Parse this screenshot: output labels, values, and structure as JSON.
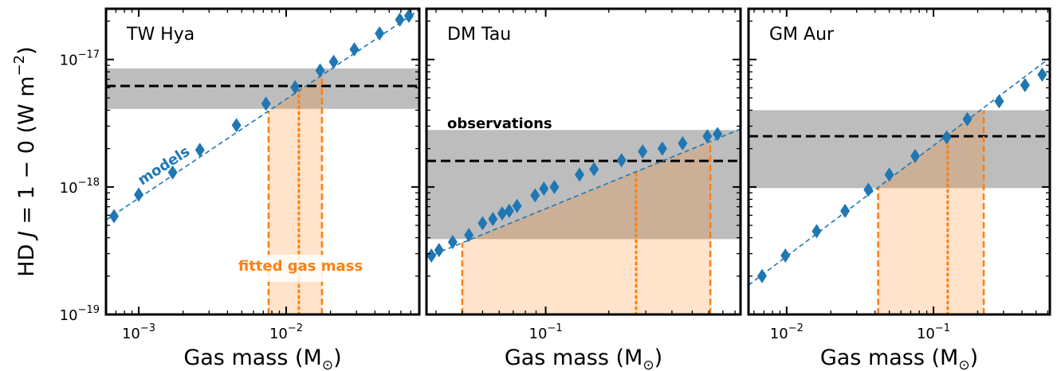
{
  "figure": {
    "ylabel_prefix": "HD",
    "ylabel_J": "J",
    "ylabel_eq": " = 1 − 0 (W m",
    "ylabel_exp": "−2",
    "ylabel_close": ")",
    "xlabel": "Gas mass (M",
    "xlabel_sub": "⊙",
    "xlabel_close": ")"
  },
  "y_ticks": [
    {
      "base": "10",
      "exp": "−17",
      "value": 1e-17
    },
    {
      "base": "10",
      "exp": "−18",
      "value": 1e-18
    },
    {
      "base": "10",
      "exp": "−19",
      "value": 1e-19
    }
  ],
  "colors": {
    "models": "#1f77b4",
    "fit": "#ff7f0e",
    "fit_fill": "#ffe2c6",
    "obs_band": "#bdbdbd",
    "obs_line": "#000000"
  },
  "chart_data": [
    {
      "type": "scatter",
      "title": "TW Hya",
      "xscale": "log",
      "yscale": "log",
      "xlim": [
        0.0006,
        0.08
      ],
      "ylim": [
        1e-19,
        2.5e-17
      ],
      "x_ticks": [
        {
          "base": "10",
          "exp": "−3",
          "value": 0.001
        },
        {
          "base": "10",
          "exp": "−2",
          "value": 0.01
        }
      ],
      "series": [
        {
          "name": "models",
          "x": [
            0.00068,
            0.001,
            0.0017,
            0.0026,
            0.0046,
            0.0073,
            0.0115,
            0.017,
            0.021,
            0.029,
            0.043,
            0.059,
            0.068
          ],
          "y": [
            5.9e-19,
            8.7e-19,
            1.3e-18,
            1.95e-18,
            3.05e-18,
            4.5e-18,
            6.05e-18,
            8.2e-18,
            9.6e-18,
            1.2e-17,
            1.6e-17,
            2.05e-17,
            2.2e-17
          ]
        }
      ],
      "trend": {
        "x": [
          0.0006,
          0.08
        ],
        "y": [
          5.5e-19,
          2.45e-17
        ]
      },
      "observation": {
        "value": 6.2e-18,
        "low": 4.1e-18,
        "high": 8.5e-18
      },
      "fitted_mass": {
        "best": 0.0122,
        "low": 0.0076,
        "high": 0.0175
      },
      "annotations": [
        {
          "text": "models",
          "kind": "models"
        },
        {
          "text": "fitted gas mass",
          "kind": "fit"
        }
      ]
    },
    {
      "type": "scatter",
      "title": "DM Tau",
      "xscale": "log",
      "yscale": "log",
      "xlim": [
        0.027,
        0.85
      ],
      "ylim": [
        1e-19,
        2.5e-17
      ],
      "x_ticks": [
        {
          "base": "10",
          "exp": "−1",
          "value": 0.1
        }
      ],
      "series": [
        {
          "name": "models",
          "x": [
            0.0285,
            0.031,
            0.036,
            0.043,
            0.05,
            0.056,
            0.062,
            0.067,
            0.073,
            0.089,
            0.098,
            0.11,
            0.145,
            0.17,
            0.23,
            0.29,
            0.36,
            0.45,
            0.59,
            0.66
          ],
          "y": [
            2.9e-19,
            3.2e-19,
            3.7e-19,
            4.2e-19,
            5.2e-19,
            5.6e-19,
            6.2e-19,
            6.5e-19,
            7.1e-19,
            8.6e-19,
            9.7e-19,
            1e-18,
            1.25e-18,
            1.38e-18,
            1.62e-18,
            1.9e-18,
            2e-18,
            2.2e-18,
            2.5e-18,
            2.6e-18
          ]
        }
      ],
      "trend": {
        "x": [
          0.027,
          0.85
        ],
        "y": [
          2.8e-19,
          2.85e-18
        ]
      },
      "observation": {
        "value": 1.6e-18,
        "low": 3.9e-19,
        "high": 2.8e-18
      },
      "fitted_mass": {
        "best": 0.27,
        "low": 0.04,
        "high": 0.61
      },
      "annotations": [
        {
          "text": "observations",
          "kind": "obs"
        }
      ]
    },
    {
      "type": "scatter",
      "title": "GM Aur",
      "xscale": "log",
      "yscale": "log",
      "xlim": [
        0.0055,
        0.62
      ],
      "ylim": [
        1e-19,
        2.5e-17
      ],
      "x_ticks": [
        {
          "base": "10",
          "exp": "−2",
          "value": 0.01
        },
        {
          "base": "10",
          "exp": "−1",
          "value": 0.1
        }
      ],
      "series": [
        {
          "name": "models",
          "x": [
            0.0068,
            0.0098,
            0.016,
            0.025,
            0.036,
            0.05,
            0.075,
            0.123,
            0.17,
            0.28,
            0.42,
            0.55
          ],
          "y": [
            2e-19,
            2.9e-19,
            4.5e-19,
            6.5e-19,
            9.5e-19,
            1.25e-18,
            1.75e-18,
            2.45e-18,
            3.4e-18,
            4.7e-18,
            6.3e-18,
            7.6e-18
          ]
        }
      ],
      "trend": {
        "x": [
          0.0055,
          0.62
        ],
        "y": [
          1.7e-19,
          1.03e-17
        ]
      },
      "observation": {
        "value": 2.5e-18,
        "low": 9.8e-19,
        "high": 4e-18
      },
      "fitted_mass": {
        "best": 0.125,
        "low": 0.042,
        "high": 0.22
      },
      "annotations": []
    }
  ]
}
